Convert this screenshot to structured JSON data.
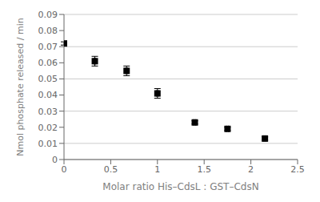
{
  "chart_data": {
    "type": "scatter",
    "x": [
      0.0,
      0.33,
      0.67,
      1.0,
      1.4,
      1.75,
      2.15
    ],
    "y": [
      0.072,
      0.061,
      0.055,
      0.041,
      0.023,
      0.019,
      0.013
    ],
    "yerr": [
      0.001,
      0.003,
      0.003,
      0.003,
      0.001,
      0.001,
      0.001
    ],
    "xerr": [
      0.0,
      0.01,
      0.01,
      0.01,
      0.01,
      0.01,
      0.01
    ],
    "xlabel": "Molar ratio His–CdsL : GST–CdsN",
    "ylabel": "Nmol phosphate released / min",
    "xlim": [
      0,
      2.5
    ],
    "ylim": [
      0,
      0.09
    ],
    "xticks": [
      0,
      0.5,
      1.0,
      1.5,
      2.0,
      2.5
    ],
    "yticks": [
      0,
      0.01,
      0.02,
      0.03,
      0.04,
      0.05,
      0.06,
      0.07,
      0.08,
      0.09
    ],
    "marker": "square",
    "color": "black",
    "grid": true
  }
}
